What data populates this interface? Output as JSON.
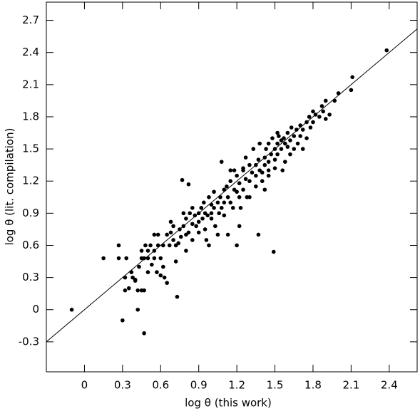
{
  "chart_data": {
    "type": "scatter",
    "x_label": "log θ (this work)",
    "y_label": "log θ (lit. compilation)",
    "color": "#000000",
    "xlim": [
      -0.3,
      2.62
    ],
    "ylim": [
      -0.58,
      2.87
    ],
    "xticks": [
      0,
      0.3,
      0.6,
      0.9,
      1.2,
      1.5,
      1.8,
      2.1,
      2.4
    ],
    "yticks": [
      -0.3,
      0,
      0.3,
      0.6,
      0.9,
      1.2,
      1.5,
      1.8,
      2.1,
      2.4,
      2.7
    ],
    "x": [
      -0.1,
      0.15,
      0.27,
      0.27,
      0.33,
      0.3,
      0.32,
      0.32,
      0.37,
      0.4,
      0.42,
      0.42,
      0.45,
      0.47,
      0.47,
      0.45,
      0.48,
      0.73,
      0.77,
      0.82,
      1.08,
      1.2,
      1.22,
      1.37,
      1.49,
      1.42,
      2.38,
      2.11,
      2.1,
      2.0,
      1.97,
      1.93,
      0.38,
      0.4,
      0.43,
      0.45,
      0.47,
      0.5,
      0.5,
      0.52,
      0.53,
      0.55,
      0.55,
      0.57,
      0.58,
      0.58,
      0.6,
      0.6,
      0.62,
      0.62,
      0.63,
      0.65,
      0.67,
      0.68,
      0.68,
      0.7,
      0.7,
      0.72,
      0.72,
      0.74,
      0.75,
      0.76,
      0.78,
      0.78,
      0.8,
      0.8,
      0.8,
      0.82,
      0.83,
      0.85,
      0.85,
      0.87,
      0.88,
      0.9,
      0.9,
      0.9,
      0.92,
      0.93,
      0.94,
      0.95,
      0.95,
      0.96,
      0.97,
      0.98,
      0.98,
      1.0,
      1.0,
      1.0,
      1.02,
      1.02,
      1.03,
      1.05,
      1.05,
      1.06,
      1.07,
      1.08,
      1.1,
      1.1,
      1.1,
      1.12,
      1.13,
      1.13,
      1.15,
      1.15,
      1.17,
      1.18,
      1.18,
      1.2,
      1.2,
      1.22,
      1.22,
      1.23,
      1.25,
      1.25,
      1.27,
      1.27,
      1.28,
      1.3,
      1.3,
      1.3,
      1.32,
      1.33,
      1.35,
      1.35,
      1.35,
      1.37,
      1.38,
      1.38,
      1.4,
      1.4,
      1.42,
      1.42,
      1.43,
      1.45,
      1.45,
      1.45,
      1.47,
      1.48,
      1.5,
      1.5,
      1.5,
      1.52,
      1.52,
      1.53,
      1.55,
      1.55,
      1.56,
      1.57,
      1.58,
      1.6,
      1.6,
      1.62,
      1.62,
      1.63,
      1.65,
      1.65,
      1.67,
      1.68,
      1.7,
      1.7,
      1.72,
      1.72,
      1.75,
      1.75,
      1.77,
      1.78,
      1.8,
      1.8,
      1.82,
      1.85,
      1.87,
      1.88,
      1.9,
      1.9,
      0.55,
      0.65,
      0.85,
      1.15,
      1.25,
      1.45,
      1.58,
      1.52,
      0.5,
      0.35
    ],
    "values": [
      0,
      0.48,
      0.6,
      0.48,
      0.48,
      -0.1,
      0.18,
      0.3,
      0.35,
      0.28,
      0,
      0.18,
      0.18,
      0.18,
      -0.22,
      0.48,
      0.6,
      0.12,
      1.21,
      1.17,
      1.38,
      0.6,
      0.78,
      0.7,
      0.54,
      1.12,
      2.42,
      2.17,
      2.05,
      2.02,
      1.95,
      1.82,
      0.3,
      0.27,
      0.4,
      0.55,
      0.48,
      0.48,
      0.55,
      0.6,
      0.42,
      0.48,
      0.7,
      0.35,
      0.6,
      0.7,
      0.32,
      0.48,
      0.6,
      0.4,
      0.3,
      0.25,
      0.6,
      0.72,
      0.82,
      0.65,
      0.78,
      0.45,
      0.6,
      0.62,
      0.75,
      0.68,
      0.9,
      0.78,
      0.55,
      0.85,
      0.7,
      0.72,
      0.9,
      0.8,
      0.65,
      0.88,
      0.78,
      0.9,
      0.72,
      0.82,
      0.95,
      0.85,
      1.0,
      0.9,
      0.75,
      0.65,
      0.88,
      1.05,
      0.6,
      0.9,
      0.98,
      0.85,
      1.1,
      0.95,
      0.78,
      1.0,
      0.7,
      0.9,
      1.05,
      0.95,
      1.12,
      1.0,
      0.88,
      1.15,
      1.05,
      0.7,
      1.2,
      1.0,
      0.95,
      1.12,
      1.3,
      1.1,
      1.25,
      1.05,
      1.18,
      0.95,
      1.3,
      1.12,
      1.22,
      1.42,
      1.05,
      1.35,
      1.2,
      1.05,
      1.28,
      1.5,
      1.35,
      1.25,
      1.15,
      1.4,
      1.3,
      1.55,
      1.28,
      1.2,
      1.42,
      1.35,
      1.5,
      1.38,
      1.55,
      1.25,
      1.45,
      1.6,
      1.5,
      1.4,
      1.32,
      1.55,
      1.45,
      1.62,
      1.5,
      1.58,
      1.3,
      1.6,
      1.55,
      1.65,
      1.52,
      1.58,
      1.45,
      1.7,
      1.62,
      1.5,
      1.68,
      1.55,
      1.72,
      1.62,
      1.68,
      1.5,
      1.75,
      1.6,
      1.8,
      1.7,
      1.85,
      1.75,
      1.82,
      1.8,
      1.9,
      1.85,
      1.95,
      1.78,
      0.55,
      0.7,
      0.95,
      1.3,
      1.32,
      1.3,
      1.38,
      1.65,
      0.35,
      0.2
    ],
    "line": {
      "x": [
        -0.3,
        2.62
      ],
      "values": [
        -0.3,
        2.62
      ]
    }
  }
}
